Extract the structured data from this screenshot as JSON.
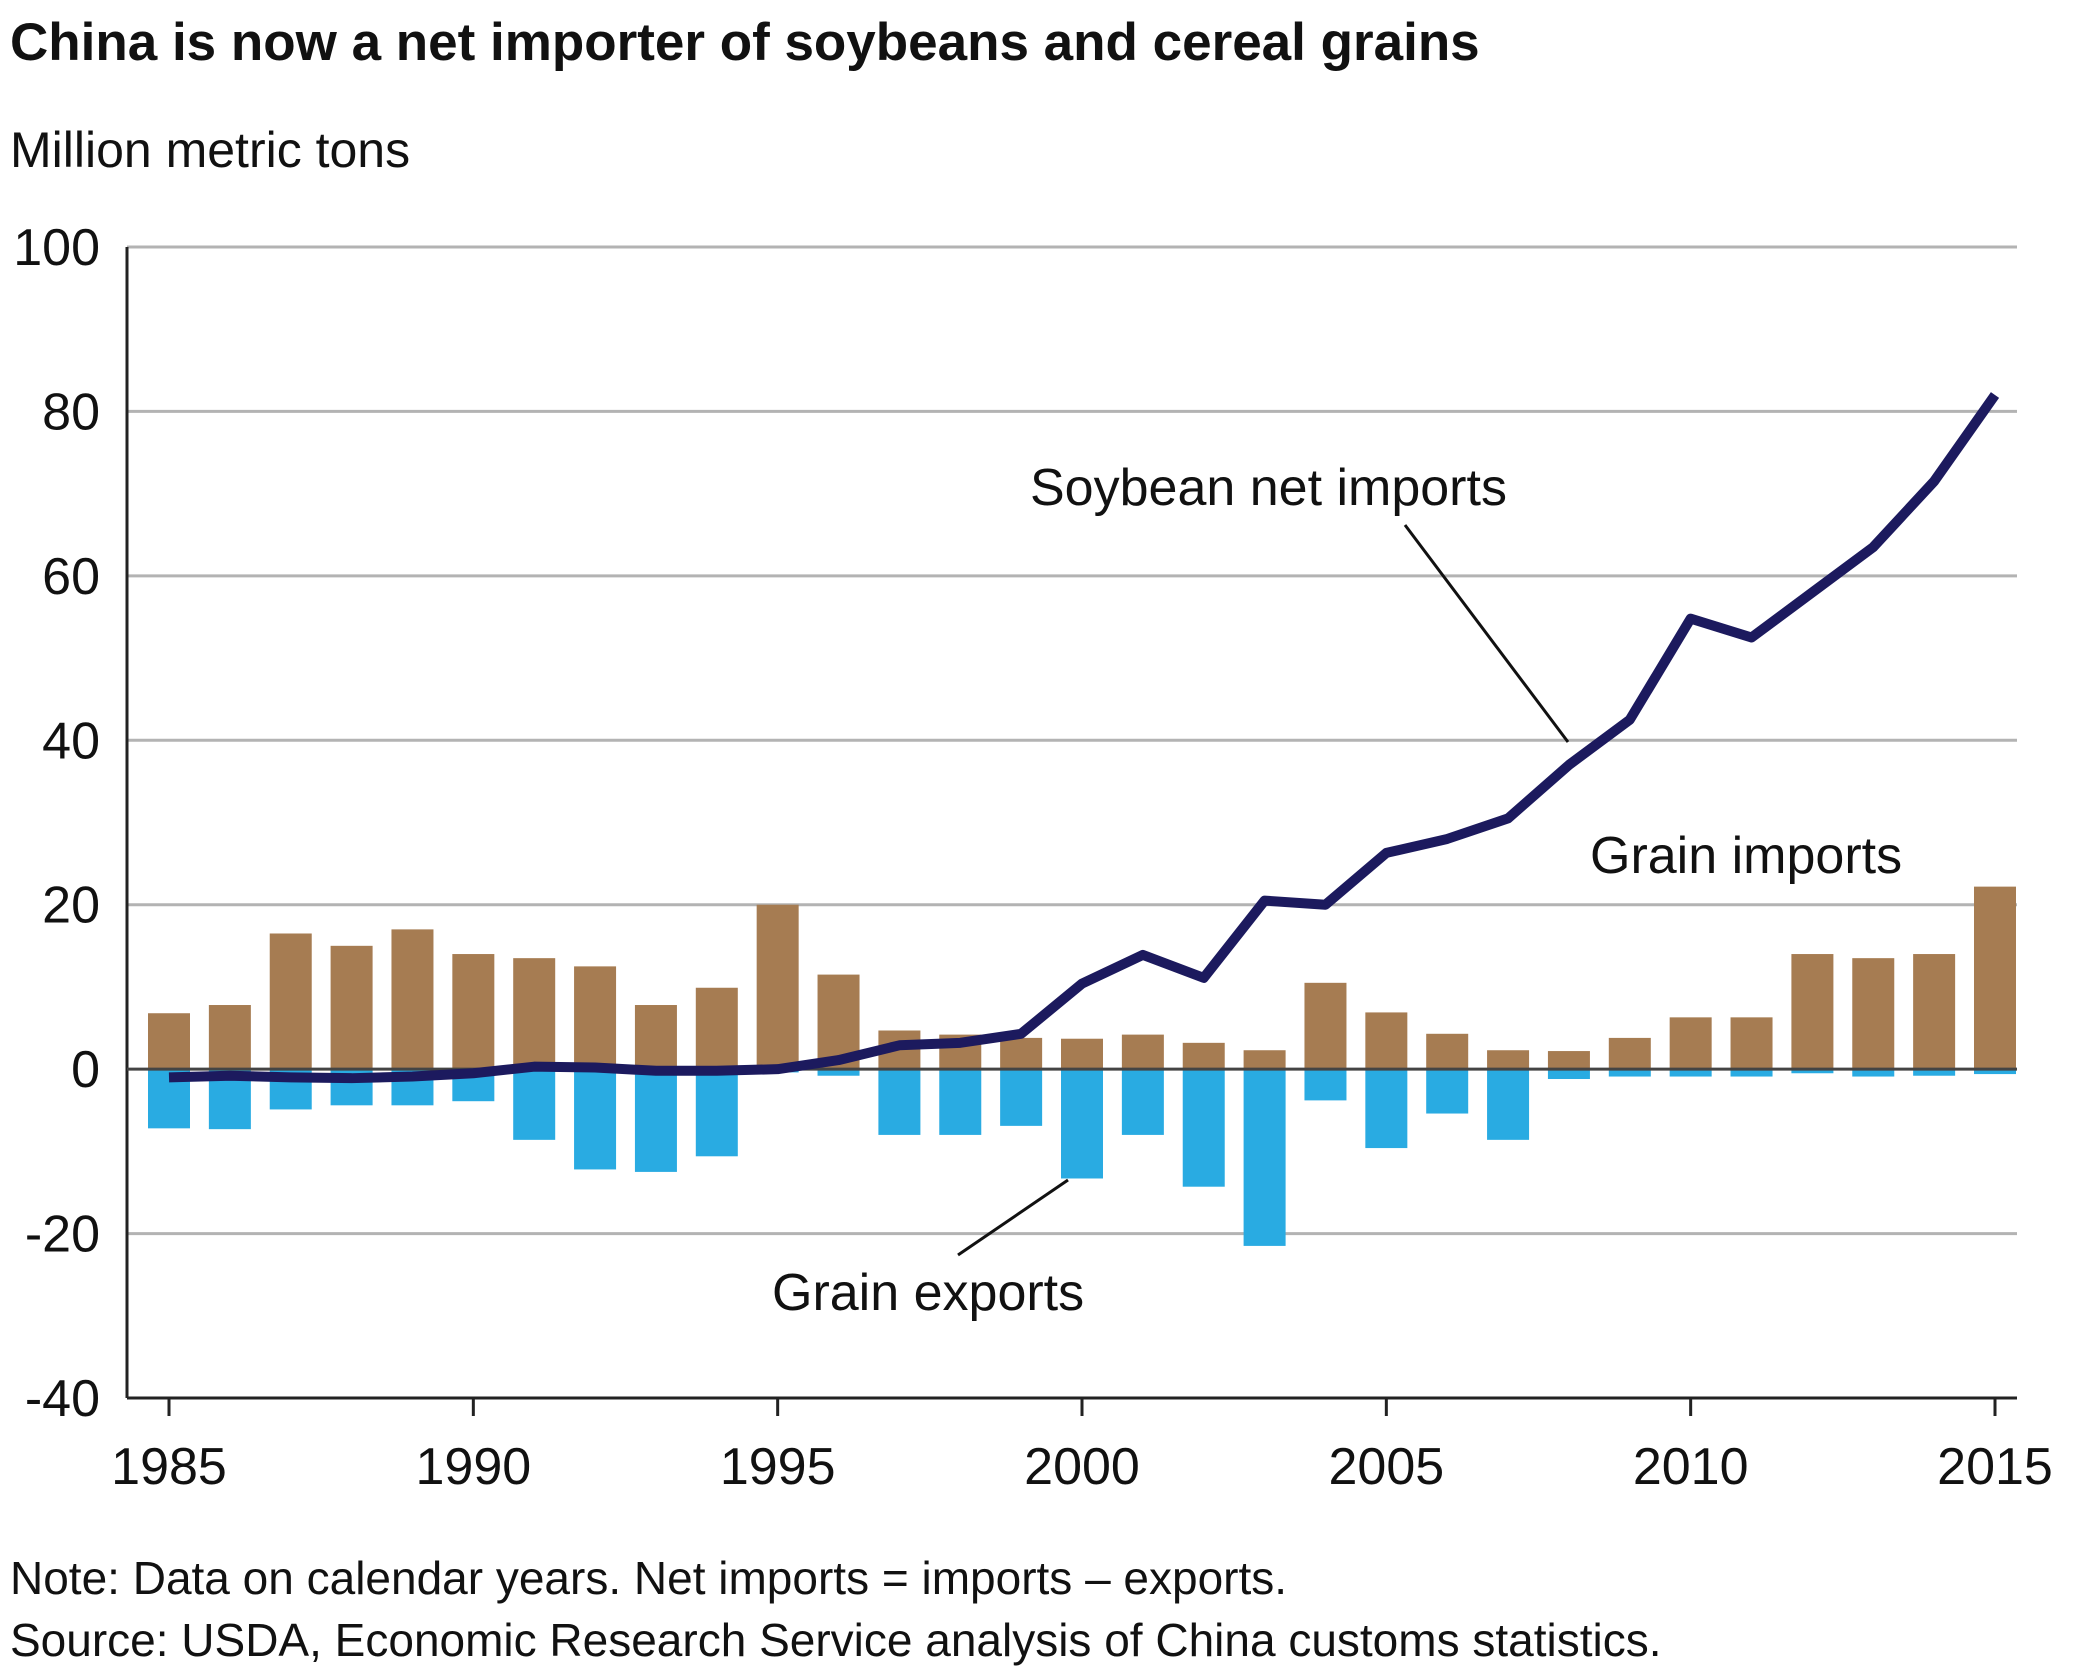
{
  "chart_data": {
    "type": "bar",
    "title": "China is now a net importer of soybeans and cereal grains",
    "unit_label": "Million metric tons",
    "ylim": [
      -40,
      100
    ],
    "y_ticks": [
      100,
      80,
      60,
      40,
      20,
      0,
      -20,
      -40
    ],
    "y_tick_labels": [
      "100",
      "80",
      "60",
      "40",
      "20",
      "0",
      "-20",
      "-40"
    ],
    "x_tick_labels": [
      {
        "year": 1985,
        "label": "1985"
      },
      {
        "year": 1990,
        "label": "1990"
      },
      {
        "year": 1995,
        "label": "1995"
      },
      {
        "year": 2000,
        "label": "2000"
      },
      {
        "year": 2005,
        "label": "2005"
      },
      {
        "year": 2010,
        "label": "2010"
      },
      {
        "year": 2015,
        "label": "2015"
      }
    ],
    "grid": true,
    "years": [
      1985,
      1986,
      1987,
      1988,
      1989,
      1990,
      1991,
      1992,
      1993,
      1994,
      1995,
      1996,
      1997,
      1998,
      1999,
      2000,
      2001,
      2002,
      2003,
      2004,
      2005,
      2006,
      2007,
      2008,
      2009,
      2010,
      2011,
      2012,
      2013,
      2014,
      2015
    ],
    "series": [
      {
        "name": "Grain imports",
        "kind": "bar",
        "color": "#a67c52",
        "values": [
          6.8,
          7.8,
          16.5,
          15.0,
          17.0,
          14.0,
          13.5,
          12.5,
          7.8,
          9.9,
          20.0,
          11.5,
          4.7,
          4.2,
          3.8,
          3.7,
          4.2,
          3.2,
          2.3,
          10.5,
          6.9,
          4.3,
          2.3,
          2.2,
          3.8,
          6.3,
          6.3,
          14.0,
          13.5,
          14.0,
          22.2
        ]
      },
      {
        "name": "Grain exports",
        "kind": "bar",
        "color": "#29abe2",
        "values": [
          -7.2,
          -7.3,
          -4.9,
          -4.4,
          -4.4,
          -3.9,
          -8.6,
          -12.2,
          -12.5,
          -10.6,
          -0.4,
          -0.8,
          -8.0,
          -8.0,
          -6.9,
          -13.3,
          -8.0,
          -14.3,
          -21.5,
          -3.8,
          -9.6,
          -5.4,
          -8.6,
          -1.2,
          -0.9,
          -0.9,
          -0.9,
          -0.5,
          -0.9,
          -0.8,
          -0.6
        ]
      },
      {
        "name": "Soybean net imports",
        "kind": "line",
        "color": "#1c1a5e",
        "values": [
          -1.0,
          -0.8,
          -1.0,
          -1.1,
          -0.9,
          -0.5,
          0.3,
          0.2,
          -0.2,
          -0.2,
          0.0,
          1.1,
          2.9,
          3.2,
          4.3,
          10.4,
          13.9,
          11.1,
          20.5,
          20.0,
          26.3,
          28.0,
          30.5,
          37.0,
          42.5,
          54.8,
          52.5,
          58.0,
          63.5,
          71.5,
          82.0
        ]
      }
    ],
    "annotations": [
      {
        "text": "Soybean net imports",
        "points_to": "Soybean net imports"
      },
      {
        "text": "Grain imports",
        "points_to": "Grain imports"
      },
      {
        "text": "Grain exports",
        "points_to": "Grain exports"
      }
    ],
    "note": "Note: Data on calendar years. Net imports = imports – exports.",
    "source": "Source: USDA, Economic Research Service analysis of China customs statistics."
  }
}
